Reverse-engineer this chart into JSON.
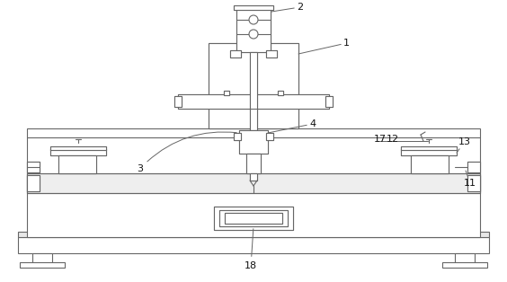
{
  "bg": "#ffffff",
  "lc": "#666666",
  "lw": 0.8,
  "fw": 5.64,
  "fh": 3.14,
  "dpi": 100
}
